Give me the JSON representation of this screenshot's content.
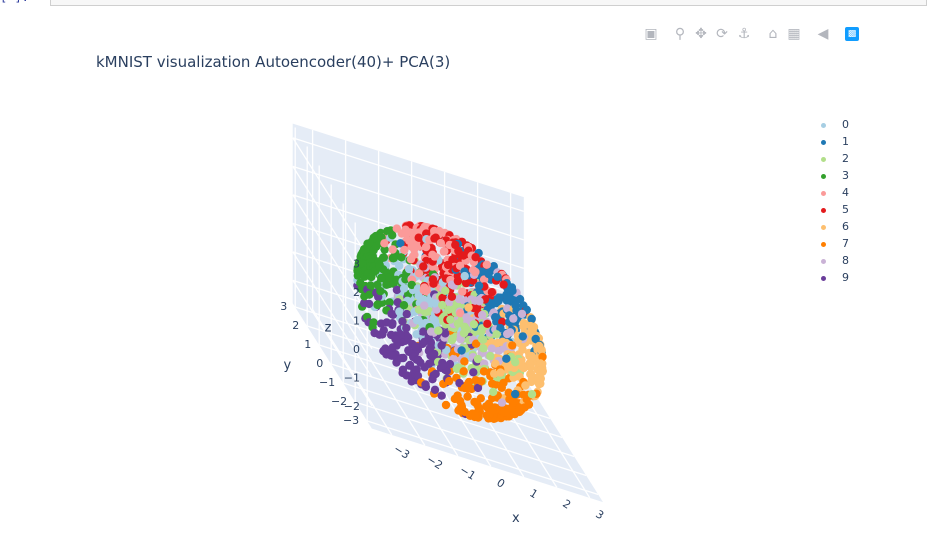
{
  "notebook": {
    "prompt": "[ ]:"
  },
  "modebar": {
    "icons": [
      "camera-icon",
      "zoom-icon",
      "pan-icon",
      "orbit-rotation-icon",
      "turntable-rotation-icon",
      "home-icon",
      "default-view-icon",
      "hover-spike-icon",
      "plotly-logo-icon"
    ]
  },
  "chart_data": {
    "type": "scatter",
    "projection": "3d",
    "title": "kMNIST visualization Autoencoder(40)+ PCA(3)",
    "axes": {
      "x": {
        "label": "x",
        "ticks": [
          "−3",
          "−2",
          "−1",
          "0",
          "1",
          "2",
          "3"
        ],
        "range": [
          -3.6,
          3.4
        ]
      },
      "y": {
        "label": "y",
        "ticks": [
          "−3",
          "−2",
          "−1",
          "0",
          "1",
          "2",
          "3"
        ],
        "range": [
          -3.4,
          3.2
        ]
      },
      "z": {
        "label": "z",
        "ticks": [
          "−2",
          "−1",
          "0",
          "1",
          "2",
          "3"
        ],
        "range": [
          -2.8,
          3.5
        ]
      }
    },
    "grid": true,
    "legend_position": "top-right",
    "series": [
      {
        "name": "0",
        "color": "#a6cee3",
        "center": [
          -0.8,
          0.4,
          0.2
        ]
      },
      {
        "name": "1",
        "color": "#1f78b4",
        "center": [
          1.5,
          0.2,
          1.1
        ]
      },
      {
        "name": "2",
        "color": "#b2df8a",
        "center": [
          0.3,
          -0.3,
          0.0
        ]
      },
      {
        "name": "3",
        "color": "#33a02c",
        "center": [
          -2.3,
          0.6,
          0.8
        ]
      },
      {
        "name": "4",
        "color": "#fb9a99",
        "center": [
          -0.3,
          0.6,
          2.0
        ]
      },
      {
        "name": "5",
        "color": "#e31a1c",
        "center": [
          0.2,
          0.5,
          1.8
        ]
      },
      {
        "name": "6",
        "color": "#fdbf6f",
        "center": [
          2.1,
          -0.6,
          -0.1
        ]
      },
      {
        "name": "7",
        "color": "#ff7f00",
        "center": [
          0.8,
          -1.1,
          -1.6
        ]
      },
      {
        "name": "8",
        "color": "#cab2d6",
        "center": [
          0.5,
          -0.2,
          0.3
        ]
      },
      {
        "name": "9",
        "color": "#6a3d9a",
        "center": [
          -1.4,
          -0.8,
          -0.9
        ]
      }
    ]
  }
}
